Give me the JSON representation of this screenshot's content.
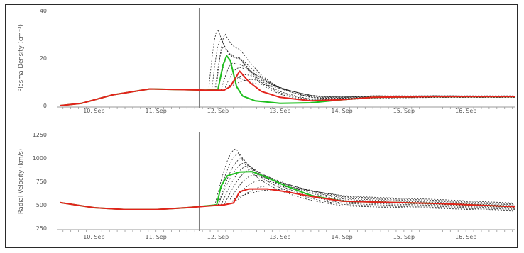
{
  "colors": {
    "green": "#1fbf1f",
    "red": "#e3221b",
    "ensemble": "#222222",
    "axis": "#9a9a9a",
    "now_line": "#7f7f7f"
  },
  "chart_data": [
    {
      "type": "line",
      "ylabel": "Plasma Density (cm⁻³)",
      "xticks": [
        "10. Sep",
        "11. Sep",
        "12. Sep",
        "13. Sep",
        "14. Sep",
        "15. Sep",
        "16. Sep"
      ],
      "yticks": [
        "40",
        "20",
        "0"
      ],
      "ylim": [
        0,
        40
      ],
      "xlim_days": [
        9.4,
        16.8
      ],
      "now_marker_day": 11.7,
      "series": [
        {
          "style": "green",
          "points": [
            [
              9.45,
              0
            ],
            [
              9.8,
              1
            ],
            [
              10.3,
              4.5
            ],
            [
              10.9,
              7
            ],
            [
              11.3,
              6.8
            ],
            [
              11.8,
              6.5
            ],
            [
              12.0,
              6.8
            ],
            [
              12.08,
              17
            ],
            [
              12.14,
              21
            ],
            [
              12.2,
              19
            ],
            [
              12.3,
              8
            ],
            [
              12.4,
              4
            ],
            [
              12.6,
              2
            ],
            [
              13.0,
              1
            ],
            [
              13.5,
              1.2
            ],
            [
              14.0,
              2.5
            ],
            [
              14.5,
              3.5
            ],
            [
              15.5,
              3.8
            ],
            [
              16.8,
              3.8
            ]
          ]
        },
        {
          "style": "red",
          "points": [
            [
              9.45,
              0
            ],
            [
              9.8,
              1
            ],
            [
              10.3,
              4.5
            ],
            [
              10.9,
              7
            ],
            [
              11.3,
              6.8
            ],
            [
              11.8,
              6.5
            ],
            [
              12.1,
              6.5
            ],
            [
              12.2,
              8
            ],
            [
              12.35,
              14.5
            ],
            [
              12.5,
              10
            ],
            [
              12.7,
              6
            ],
            [
              13.0,
              3.5
            ],
            [
              13.5,
              2
            ],
            [
              14.0,
              2.5
            ],
            [
              14.5,
              3.5
            ],
            [
              15.5,
              3.8
            ],
            [
              16.8,
              3.8
            ]
          ]
        }
      ],
      "ensemble": [
        {
          "peak_day": 12.0,
          "peak": 32,
          "start_day": 11.85
        },
        {
          "peak_day": 12.05,
          "peak": 28,
          "start_day": 11.9
        },
        {
          "peak_day": 12.1,
          "peak": 25,
          "start_day": 11.95
        },
        {
          "peak_day": 12.12,
          "peak": 30,
          "start_day": 11.97
        },
        {
          "peak_day": 12.2,
          "peak": 22,
          "start_day": 12.0
        },
        {
          "peak_day": 12.25,
          "peak": 18,
          "start_day": 12.05
        },
        {
          "peak_day": 12.35,
          "peak": 16,
          "start_day": 12.1
        },
        {
          "peak_day": 12.45,
          "peak": 13,
          "start_day": 12.15
        },
        {
          "peak_day": 12.55,
          "peak": 11,
          "start_day": 12.2
        },
        {
          "peak_day": 12.7,
          "peak": 9,
          "start_day": 12.3
        }
      ]
    },
    {
      "type": "line",
      "ylabel": "Radial Velocity (km/s)",
      "xticks": [
        "10. Sep",
        "11. Sep",
        "12. Sep",
        "13. Sep",
        "14. Sep",
        "15. Sep",
        "16. Sep"
      ],
      "yticks": [
        "1250",
        "1000",
        "750",
        "500",
        "250"
      ],
      "ylim": [
        250,
        1250
      ],
      "xlim_days": [
        9.4,
        16.8
      ],
      "now_marker_day": 11.7,
      "series": [
        {
          "style": "green",
          "points": [
            [
              9.45,
              525
            ],
            [
              10.0,
              470
            ],
            [
              10.5,
              450
            ],
            [
              11.0,
              450
            ],
            [
              11.5,
              470
            ],
            [
              11.9,
              495
            ],
            [
              11.98,
              500
            ],
            [
              12.05,
              700
            ],
            [
              12.15,
              810
            ],
            [
              12.35,
              850
            ],
            [
              12.55,
              855
            ],
            [
              12.8,
              790
            ],
            [
              13.1,
              700
            ],
            [
              13.5,
              600
            ],
            [
              14.0,
              540
            ],
            [
              14.5,
              530
            ],
            [
              15.5,
              515
            ],
            [
              16.8,
              480
            ]
          ]
        },
        {
          "style": "red",
          "points": [
            [
              9.45,
              525
            ],
            [
              10.0,
              470
            ],
            [
              10.5,
              450
            ],
            [
              11.0,
              450
            ],
            [
              11.5,
              470
            ],
            [
              11.9,
              490
            ],
            [
              12.1,
              500
            ],
            [
              12.25,
              520
            ],
            [
              12.35,
              640
            ],
            [
              12.5,
              670
            ],
            [
              12.8,
              670
            ],
            [
              13.1,
              640
            ],
            [
              13.5,
              590
            ],
            [
              14.0,
              540
            ],
            [
              14.5,
              530
            ],
            [
              15.5,
              515
            ],
            [
              16.8,
              480
            ]
          ]
        }
      ],
      "ensemble": [
        {
          "peak_day": 12.3,
          "peak": 1100,
          "start_day": 11.95
        },
        {
          "peak_day": 12.35,
          "peak": 1050,
          "start_day": 11.97
        },
        {
          "peak_day": 12.4,
          "peak": 1000,
          "start_day": 12.0
        },
        {
          "peak_day": 12.45,
          "peak": 950,
          "start_day": 12.0
        },
        {
          "peak_day": 12.5,
          "peak": 920,
          "start_day": 12.05
        },
        {
          "peak_day": 12.55,
          "peak": 880,
          "start_day": 12.1
        },
        {
          "peak_day": 12.6,
          "peak": 820,
          "start_day": 12.15
        },
        {
          "peak_day": 12.7,
          "peak": 760,
          "start_day": 12.2
        },
        {
          "peak_day": 12.8,
          "peak": 700,
          "start_day": 12.25
        },
        {
          "peak_day": 12.9,
          "peak": 660,
          "start_day": 12.3
        }
      ]
    }
  ]
}
